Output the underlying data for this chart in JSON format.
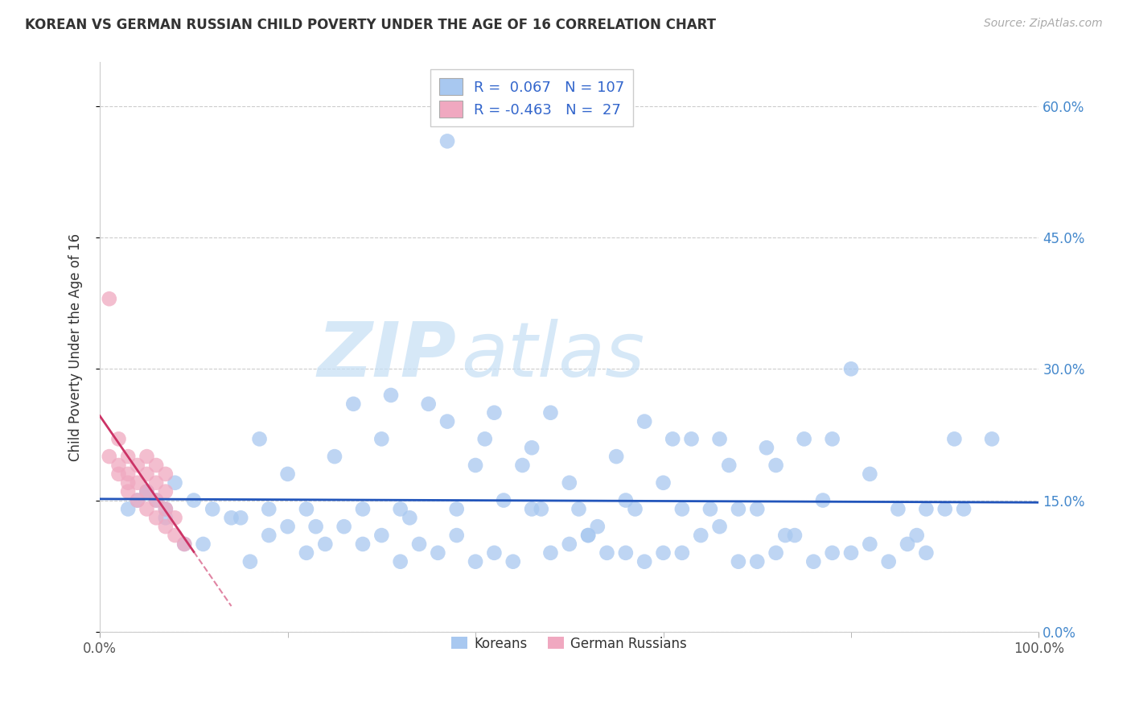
{
  "title": "KOREAN VS GERMAN RUSSIAN CHILD POVERTY UNDER THE AGE OF 16 CORRELATION CHART",
  "source": "Source: ZipAtlas.com",
  "ylabel": "Child Poverty Under the Age of 16",
  "xlim": [
    0,
    100
  ],
  "ylim": [
    0,
    65
  ],
  "ytick_values": [
    0,
    15,
    30,
    45,
    60
  ],
  "ytick_labels": [
    "0.0%",
    "15.0%",
    "30.0%",
    "45.0%",
    "60.0%"
  ],
  "xtick_values": [
    0,
    100
  ],
  "xtick_labels": [
    "0.0%",
    "100.0%"
  ],
  "xtick_minor_values": [
    20,
    40,
    60,
    80
  ],
  "korean_R": 0.067,
  "korean_N": 107,
  "german_russian_R": -0.463,
  "german_russian_N": 27,
  "korean_color": "#a8c8f0",
  "german_russian_color": "#f0a8c0",
  "trend_korean_color": "#2255bb",
  "trend_german_russian_color": "#cc3366",
  "legend_label_korean": "Koreans",
  "legend_label_german_russian": "German Russians",
  "korean_x": [
    37,
    3,
    4,
    5,
    6,
    7,
    8,
    10,
    12,
    15,
    17,
    18,
    20,
    22,
    23,
    25,
    27,
    28,
    30,
    31,
    32,
    33,
    35,
    37,
    38,
    40,
    41,
    42,
    43,
    45,
    46,
    47,
    48,
    50,
    51,
    52,
    53,
    55,
    56,
    57,
    58,
    60,
    61,
    62,
    63,
    65,
    66,
    67,
    68,
    70,
    71,
    72,
    73,
    75,
    77,
    78,
    80,
    82,
    85,
    87,
    88,
    90,
    92,
    95,
    5,
    7,
    9,
    11,
    14,
    16,
    18,
    20,
    22,
    24,
    26,
    28,
    30,
    32,
    34,
    36,
    38,
    40,
    42,
    44,
    46,
    48,
    50,
    52,
    54,
    56,
    58,
    60,
    62,
    64,
    66,
    68,
    70,
    72,
    74,
    76,
    78,
    80,
    82,
    84,
    86,
    88,
    91
  ],
  "korean_y": [
    56,
    14,
    15,
    16,
    15,
    13,
    17,
    15,
    14,
    13,
    22,
    14,
    18,
    14,
    12,
    20,
    26,
    14,
    22,
    27,
    14,
    13,
    26,
    24,
    14,
    19,
    22,
    25,
    15,
    19,
    21,
    14,
    25,
    17,
    14,
    11,
    12,
    20,
    15,
    14,
    24,
    17,
    22,
    14,
    22,
    14,
    22,
    19,
    14,
    14,
    21,
    19,
    11,
    22,
    15,
    22,
    30,
    18,
    14,
    11,
    14,
    14,
    14,
    22,
    16,
    14,
    10,
    10,
    13,
    8,
    11,
    12,
    9,
    10,
    12,
    10,
    11,
    8,
    10,
    9,
    11,
    8,
    9,
    8,
    14,
    9,
    10,
    11,
    9,
    9,
    8,
    9,
    9,
    11,
    12,
    8,
    8,
    9,
    11,
    8,
    9,
    9,
    10,
    8,
    10,
    9,
    22
  ],
  "german_x": [
    1,
    1,
    2,
    2,
    2,
    3,
    3,
    3,
    3,
    4,
    4,
    4,
    5,
    5,
    5,
    5,
    6,
    6,
    6,
    6,
    7,
    7,
    7,
    7,
    8,
    8,
    9
  ],
  "german_y": [
    38,
    20,
    22,
    19,
    18,
    20,
    18,
    17,
    16,
    19,
    17,
    15,
    20,
    18,
    16,
    14,
    19,
    17,
    15,
    13,
    18,
    16,
    14,
    12,
    13,
    11,
    10
  ],
  "german_trend_x_start": 0,
  "german_trend_x_solid_end": 10,
  "german_trend_x_dashed_end": 14
}
